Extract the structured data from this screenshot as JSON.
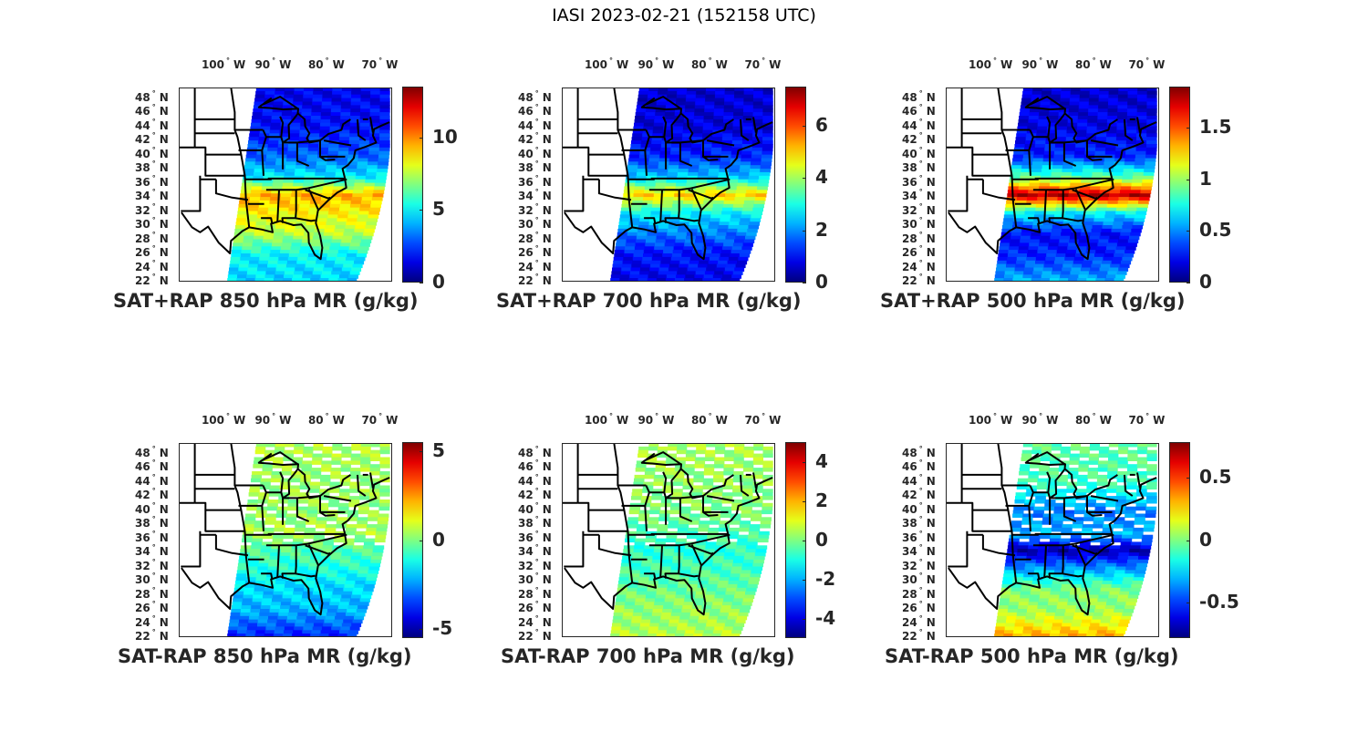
{
  "figure": {
    "title": "IASI 2023-02-21 (152158 UTC)"
  },
  "chart_data": [
    {
      "type": "heatmap",
      "panel": "top-left",
      "title": "SAT+RAP 850 hPa MR (g/kg)",
      "xlabel": "",
      "ylabel": "",
      "x_ticks": [
        "100° W",
        "90° W",
        "80° W",
        "70° W"
      ],
      "y_ticks": [
        "48° N",
        "46° N",
        "44° N",
        "42° N",
        "40° N",
        "38° N",
        "36° N",
        "34° N",
        "32° N",
        "30° N",
        "28° N",
        "26° N",
        "24° N",
        "22° N"
      ],
      "colormap": "jet",
      "clim": [
        0,
        13.5
      ],
      "colorbar_ticks": [
        0,
        5,
        10
      ],
      "colorbar_tick_labels": [
        "0",
        "5",
        "10"
      ],
      "field": {
        "bands": [
          {
            "lat": 49,
            "value": 1.5
          },
          {
            "lat": 44,
            "value": 1.8
          },
          {
            "lat": 40,
            "value": 3.0
          },
          {
            "lat": 37,
            "value": 5.0
          },
          {
            "lat": 34.5,
            "value": 9.5
          },
          {
            "lat": 32,
            "value": 8.5
          },
          {
            "lat": 29,
            "value": 7.5
          },
          {
            "lat": 26,
            "value": 5.0
          },
          {
            "lat": 22,
            "value": 4.5
          }
        ]
      }
    },
    {
      "type": "heatmap",
      "panel": "top-middle",
      "title": "SAT+RAP 700 hPa MR (g/kg)",
      "xlabel": "",
      "ylabel": "",
      "x_ticks": [
        "100° W",
        "90° W",
        "80° W",
        "70° W"
      ],
      "y_ticks": [
        "48° N",
        "46° N",
        "44° N",
        "42° N",
        "40° N",
        "38° N",
        "36° N",
        "34° N",
        "32° N",
        "30° N",
        "28° N",
        "26° N",
        "24° N",
        "22° N"
      ],
      "colormap": "jet",
      "clim": [
        0,
        7.5
      ],
      "colorbar_ticks": [
        0,
        2,
        4,
        6
      ],
      "colorbar_tick_labels": [
        "0",
        "2",
        "4",
        "6"
      ],
      "field": {
        "bands": [
          {
            "lat": 49,
            "value": 0.6
          },
          {
            "lat": 44,
            "value": 0.7
          },
          {
            "lat": 40,
            "value": 1.2
          },
          {
            "lat": 37,
            "value": 2.5
          },
          {
            "lat": 34.5,
            "value": 5.0
          },
          {
            "lat": 32,
            "value": 2.8
          },
          {
            "lat": 29,
            "value": 1.8
          },
          {
            "lat": 26,
            "value": 1.0
          },
          {
            "lat": 22,
            "value": 0.8
          }
        ]
      }
    },
    {
      "type": "heatmap",
      "panel": "top-right",
      "title": "SAT+RAP 500 hPa MR (g/kg)",
      "xlabel": "",
      "ylabel": "",
      "x_ticks": [
        "100° W",
        "90° W",
        "80° W",
        "70° W"
      ],
      "y_ticks": [
        "48° N",
        "46° N",
        "44° N",
        "42° N",
        "40° N",
        "38° N",
        "36° N",
        "34° N",
        "32° N",
        "30° N",
        "28° N",
        "26° N",
        "24° N",
        "22° N"
      ],
      "colormap": "jet",
      "clim": [
        0,
        1.9
      ],
      "colorbar_ticks": [
        0,
        0.5,
        1,
        1.5
      ],
      "colorbar_tick_labels": [
        "0",
        "0.5",
        "1",
        "1.5"
      ],
      "field": {
        "bands": [
          {
            "lat": 49,
            "value": 0.15
          },
          {
            "lat": 44,
            "value": 0.2
          },
          {
            "lat": 40,
            "value": 0.3
          },
          {
            "lat": 37,
            "value": 0.9
          },
          {
            "lat": 34.5,
            "value": 1.8
          },
          {
            "lat": 32,
            "value": 0.7
          },
          {
            "lat": 29,
            "value": 0.25
          },
          {
            "lat": 26,
            "value": 0.3
          },
          {
            "lat": 22,
            "value": 0.6
          }
        ]
      }
    },
    {
      "type": "heatmap",
      "panel": "bottom-left",
      "title": "SAT-RAP 850 hPa MR (g/kg)",
      "xlabel": "",
      "ylabel": "",
      "x_ticks": [
        "100° W",
        "90° W",
        "80° W",
        "70° W"
      ],
      "y_ticks": [
        "48° N",
        "46° N",
        "44° N",
        "42° N",
        "40° N",
        "38° N",
        "36° N",
        "34° N",
        "32° N",
        "30° N",
        "28° N",
        "26° N",
        "24° N",
        "22° N"
      ],
      "colormap": "jet",
      "clim": [
        -5.5,
        5.5
      ],
      "colorbar_ticks": [
        -5,
        0,
        5
      ],
      "colorbar_tick_labels": [
        "-5",
        "0",
        "5"
      ],
      "field": {
        "bands": [
          {
            "lat": 49,
            "value": 0.5
          },
          {
            "lat": 44,
            "value": 0.3
          },
          {
            "lat": 40,
            "value": 0.2
          },
          {
            "lat": 37,
            "value": 0.5
          },
          {
            "lat": 34.5,
            "value": -0.5
          },
          {
            "lat": 32,
            "value": -1.0
          },
          {
            "lat": 29,
            "value": -1.8
          },
          {
            "lat": 26,
            "value": -2.2
          },
          {
            "lat": 22,
            "value": -4.0
          }
        ],
        "sparse": true
      }
    },
    {
      "type": "heatmap",
      "panel": "bottom-middle",
      "title": "SAT-RAP 700 hPa MR (g/kg)",
      "xlabel": "",
      "ylabel": "",
      "x_ticks": [
        "100° W",
        "90° W",
        "80° W",
        "70° W"
      ],
      "y_ticks": [
        "48° N",
        "46° N",
        "44° N",
        "42° N",
        "40° N",
        "38° N",
        "36° N",
        "34° N",
        "32° N",
        "30° N",
        "28° N",
        "26° N",
        "24° N",
        "22° N"
      ],
      "colormap": "jet",
      "clim": [
        -5,
        5
      ],
      "colorbar_ticks": [
        -4,
        -2,
        0,
        2,
        4
      ],
      "colorbar_tick_labels": [
        "-4",
        "-2",
        "0",
        "2",
        "4"
      ],
      "field": {
        "bands": [
          {
            "lat": 49,
            "value": 0.4
          },
          {
            "lat": 44,
            "value": 0.2
          },
          {
            "lat": 40,
            "value": 0.0
          },
          {
            "lat": 37,
            "value": -0.5
          },
          {
            "lat": 34.5,
            "value": -0.8
          },
          {
            "lat": 32,
            "value": -0.6
          },
          {
            "lat": 29,
            "value": -0.2
          },
          {
            "lat": 26,
            "value": 0.2
          },
          {
            "lat": 22,
            "value": 0.6
          }
        ],
        "sparse": true
      }
    },
    {
      "type": "heatmap",
      "panel": "bottom-right",
      "title": "SAT-RAP 500 hPa MR (g/kg)",
      "xlabel": "",
      "ylabel": "",
      "x_ticks": [
        "100° W",
        "90° W",
        "80° W",
        "70° W"
      ],
      "y_ticks": [
        "48° N",
        "46° N",
        "44° N",
        "42° N",
        "40° N",
        "38° N",
        "36° N",
        "34° N",
        "32° N",
        "30° N",
        "28° N",
        "26° N",
        "24° N",
        "22° N"
      ],
      "colormap": "jet",
      "clim": [
        -0.78,
        0.78
      ],
      "colorbar_ticks": [
        -0.5,
        0,
        0.5
      ],
      "colorbar_tick_labels": [
        "-0.5",
        "0",
        "0.5"
      ],
      "field": {
        "bands": [
          {
            "lat": 49,
            "value": -0.05
          },
          {
            "lat": 44,
            "value": -0.1
          },
          {
            "lat": 40,
            "value": -0.4
          },
          {
            "lat": 37,
            "value": -0.3
          },
          {
            "lat": 34.5,
            "value": -0.7
          },
          {
            "lat": 32,
            "value": -0.35
          },
          {
            "lat": 29,
            "value": 0.0
          },
          {
            "lat": 26,
            "value": 0.05
          },
          {
            "lat": 22,
            "value": 0.35
          }
        ],
        "sparse": true
      }
    }
  ]
}
